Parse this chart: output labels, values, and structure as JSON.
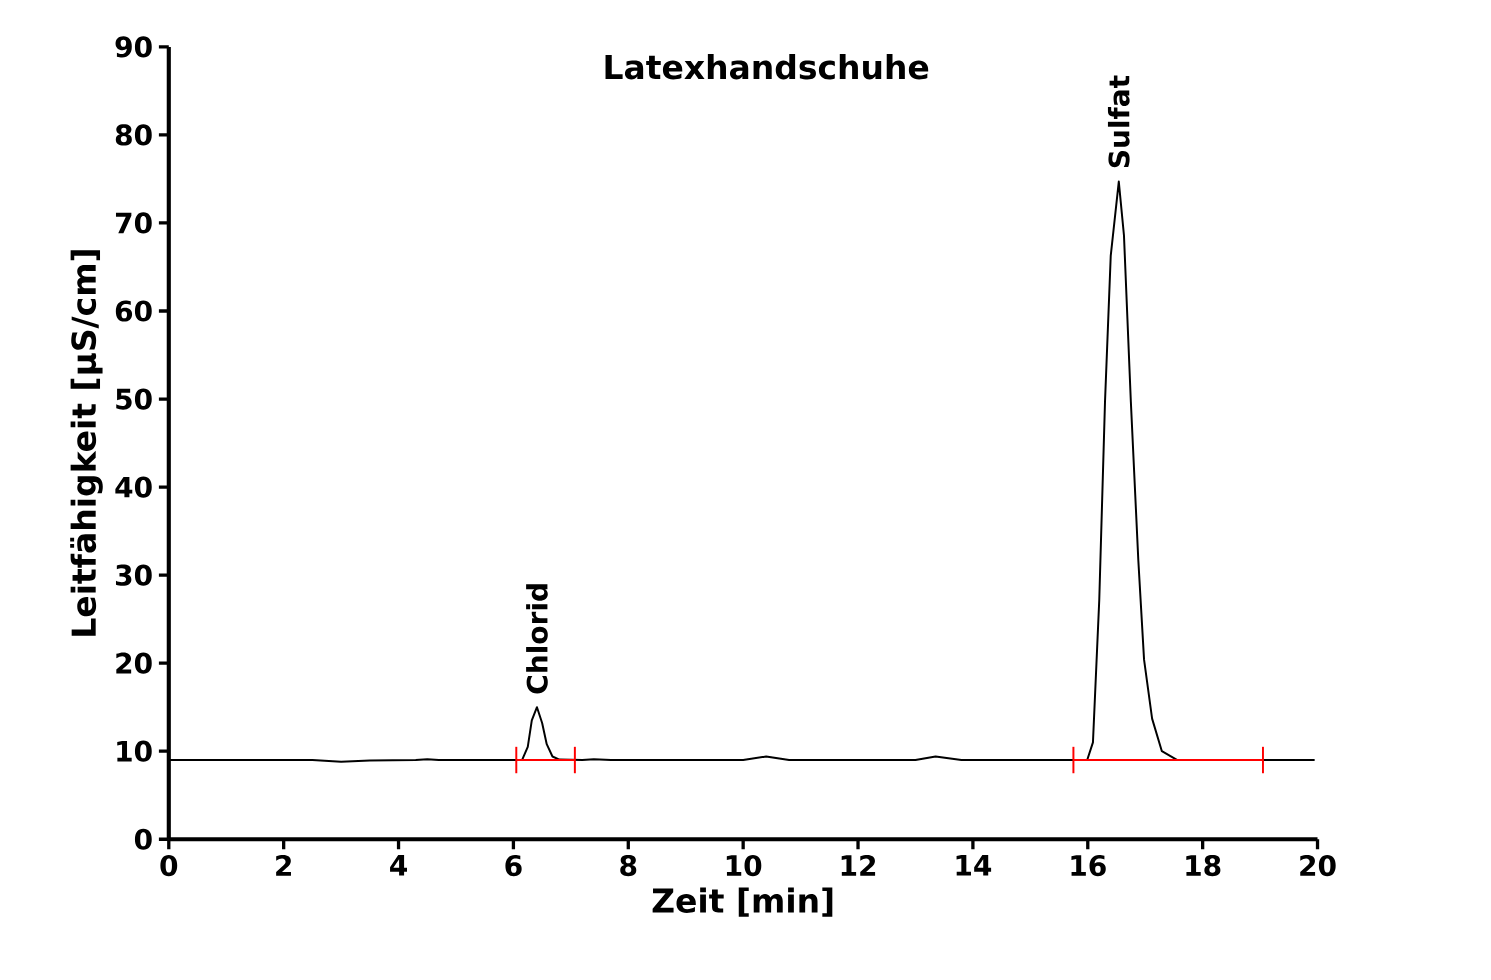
{
  "chart_data": {
    "type": "line",
    "title": "Latexhandschuhe",
    "xlabel": "Zeit [min]",
    "ylabel": "Leitfähigkeit [µS/cm]",
    "xlim": [
      0,
      20
    ],
    "ylim": [
      0,
      90
    ],
    "xticks": [
      0,
      2,
      4,
      6,
      8,
      10,
      12,
      14,
      16,
      18,
      20
    ],
    "yticks": [
      0,
      10,
      20,
      30,
      40,
      50,
      60,
      70,
      80,
      90
    ],
    "grid": false,
    "legend": false,
    "marker": "none",
    "line_style": "solid",
    "series": [
      {
        "color": "#000000",
        "x": [
          0,
          2.5,
          3.0,
          3.5,
          4.3,
          4.5,
          4.7,
          6.15,
          6.25,
          6.32,
          6.41,
          6.5,
          6.58,
          6.68,
          6.8,
          7.2,
          7.4,
          7.7,
          10.0,
          10.4,
          10.8,
          13.0,
          13.35,
          13.8,
          15.99,
          16.09,
          16.2,
          16.3,
          16.4,
          16.54,
          16.63,
          16.75,
          16.88,
          16.98,
          17.12,
          17.29,
          17.56,
          19.95
        ],
        "values": [
          9.0,
          9.0,
          8.8,
          8.95,
          9.0,
          9.1,
          9.0,
          9.0,
          10.5,
          13.5,
          15.0,
          13.2,
          10.8,
          9.4,
          9.05,
          9.0,
          9.1,
          9.0,
          9.0,
          9.4,
          9.0,
          9.0,
          9.4,
          9.0,
          9.0,
          11.0,
          27.2,
          49.7,
          66.3,
          74.7,
          68.6,
          49.7,
          31.7,
          20.4,
          13.7,
          10.0,
          9.0,
          9.0
        ]
      },
      {
        "color": "#ff0000",
        "x": [
          6.05,
          7.07,
          11.0,
          15.75,
          19.05
        ],
        "values": [
          9.0,
          9.0,
          null,
          9.0,
          9.0
        ],
        "errors": [
          1.5,
          1.5,
          null,
          1.5,
          1.5
        ]
      }
    ],
    "annotations": [
      {
        "text": "Chlorid",
        "x": 6.41,
        "y": 15.0
      },
      {
        "text": "Sulfat",
        "x": 16.54,
        "y": 74.7
      }
    ]
  }
}
